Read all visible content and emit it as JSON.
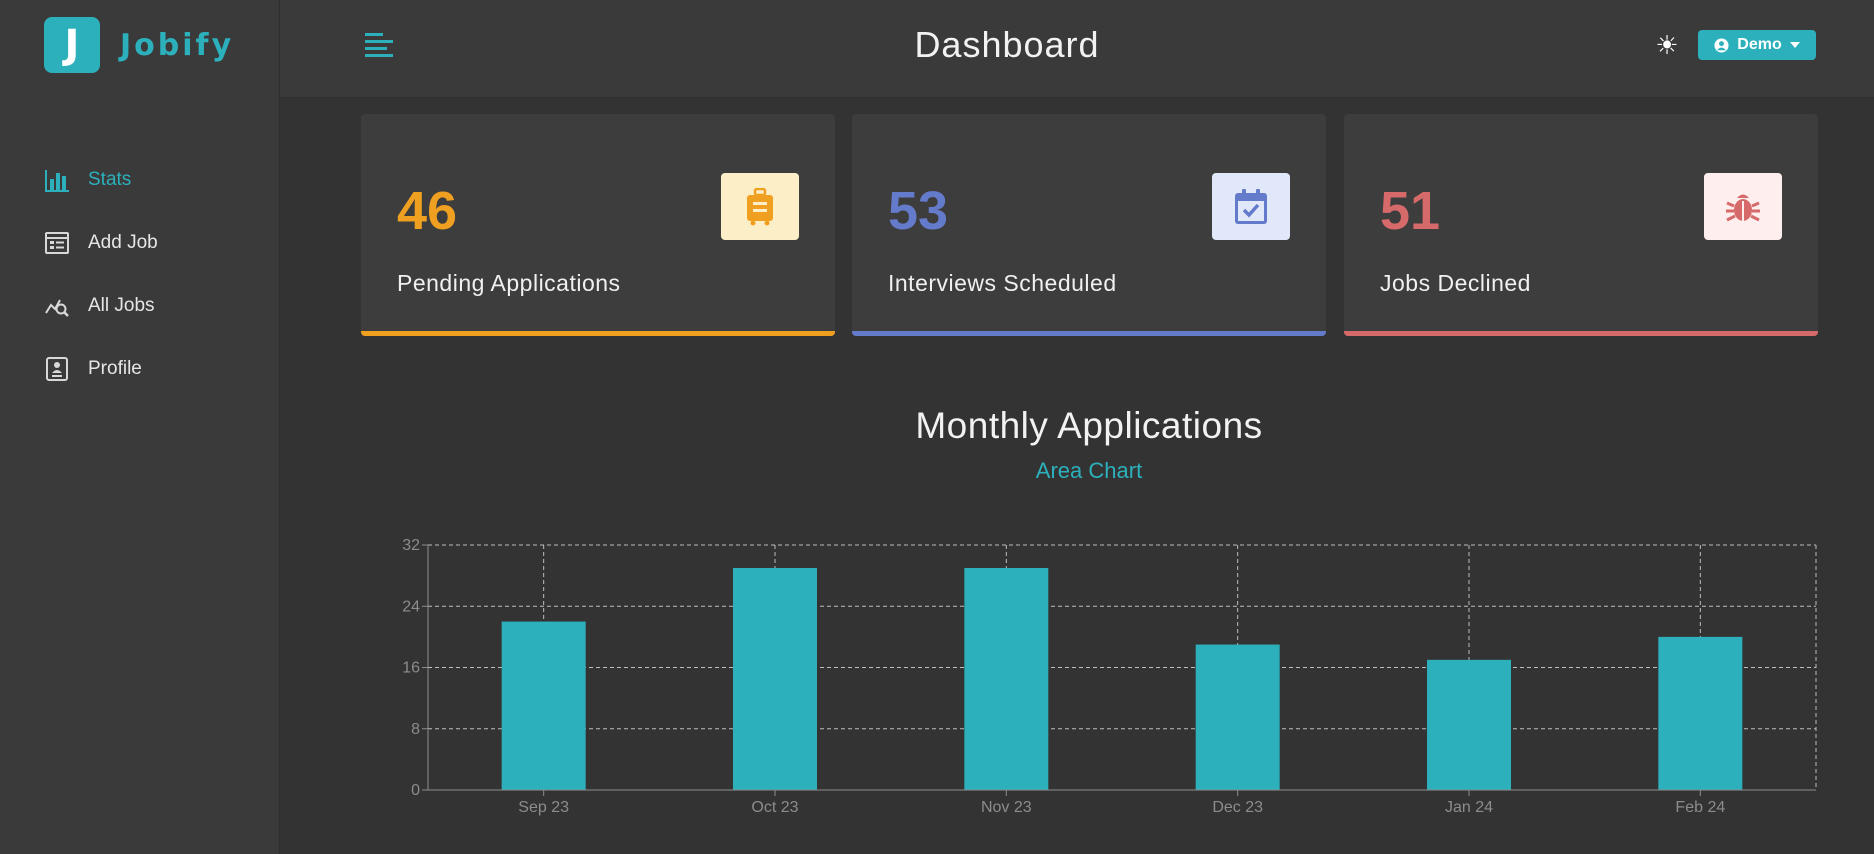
{
  "brand": {
    "logo_letter": "J",
    "name": "Jobify"
  },
  "header": {
    "title": "Dashboard",
    "theme_icon": "sun-icon",
    "user_button": "Demo"
  },
  "sidebar": {
    "items": [
      {
        "label": "Stats",
        "icon": "bar-chart-icon",
        "active": true
      },
      {
        "label": "Add Job",
        "icon": "form-icon",
        "active": false
      },
      {
        "label": "All Jobs",
        "icon": "search-chart-icon",
        "active": false
      },
      {
        "label": "Profile",
        "icon": "id-card-icon",
        "active": false
      }
    ]
  },
  "stats": [
    {
      "count": "46",
      "label": "Pending Applications",
      "icon": "suitcase-icon",
      "color": "#f0a020",
      "bg": "#fcefc7"
    },
    {
      "count": "53",
      "label": "Interviews Scheduled",
      "icon": "calendar-check-icon",
      "color": "#647acb",
      "bg": "#e0e8f9"
    },
    {
      "count": "51",
      "label": "Jobs Declined",
      "icon": "bug-icon",
      "color": "#d66a6a",
      "bg": "#ffeeee"
    }
  ],
  "chart": {
    "title": "Monthly Applications",
    "subtitle": "Area Chart"
  },
  "chart_data": {
    "type": "bar",
    "categories": [
      "Sep 23",
      "Oct 23",
      "Nov 23",
      "Dec 23",
      "Jan 24",
      "Feb 24"
    ],
    "values": [
      22,
      29,
      29,
      19,
      17,
      20
    ],
    "yticks": [
      0,
      8,
      16,
      24,
      32
    ],
    "ylim": [
      0,
      32
    ],
    "grid": true,
    "bar_color": "#2cb1bc"
  }
}
